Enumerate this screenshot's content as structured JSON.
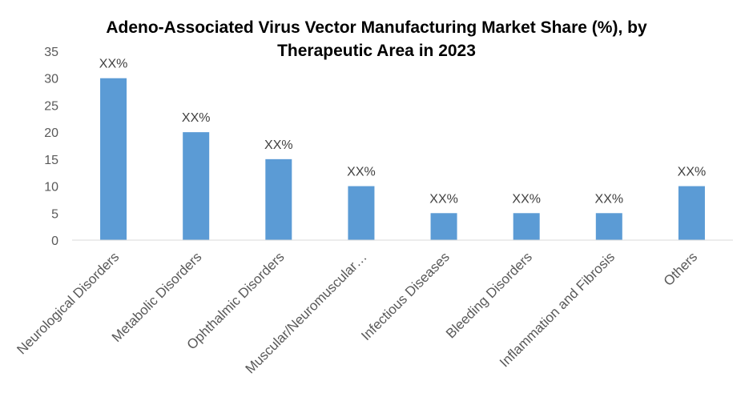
{
  "chart_data": {
    "type": "bar",
    "title_line1": "Adeno-Associated Virus Vector Manufacturing Market Share (%), by",
    "title_line2": "Therapeutic Area in 2023",
    "categories": [
      "Neurological Disorders",
      "Metabolic Disorders",
      "Ophthalmic Disorders",
      "Muscular/Neuromuscular…",
      "Infectious Diseases",
      "Bleeding Disorders",
      "Inflammation and Fibrosis",
      "Others"
    ],
    "values": [
      30,
      20,
      15,
      10,
      5,
      5,
      5,
      10
    ],
    "data_labels": [
      "XX%",
      "XX%",
      "XX%",
      "XX%",
      "XX%",
      "XX%",
      "XX%",
      "XX%"
    ],
    "y_ticks": [
      0,
      5,
      10,
      15,
      20,
      25,
      30,
      35
    ],
    "ylim": [
      0,
      35
    ],
    "grid": false,
    "legend": "none",
    "bar_color": "#5B9BD5",
    "axis_color": "#D9D9D9",
    "text_color": "#595959"
  }
}
